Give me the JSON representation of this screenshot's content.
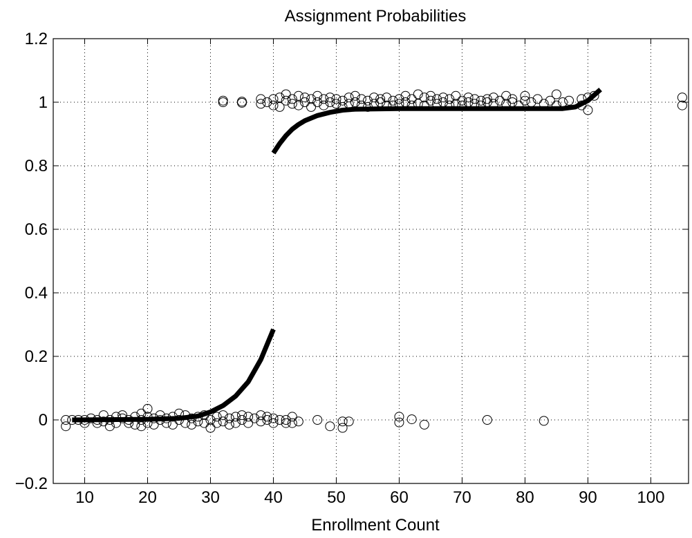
{
  "chart_data": {
    "type": "scatter",
    "title": "Assignment Probabilities",
    "xlabel": "Enrollment Count",
    "ylabel": "",
    "xlim": [
      5,
      106
    ],
    "ylim": [
      -0.2,
      1.2
    ],
    "x_ticks": [
      10,
      20,
      30,
      40,
      50,
      60,
      70,
      80,
      90,
      100
    ],
    "y_ticks": [
      -0.2,
      0,
      0.2,
      0.4,
      0.6,
      0.8,
      1,
      1.2
    ],
    "x_tick_labels": [
      "10",
      "20",
      "30",
      "40",
      "50",
      "60",
      "70",
      "80",
      "90",
      "100"
    ],
    "y_tick_labels": [
      "−0.2",
      "0",
      "0.2",
      "0.4",
      "0.6",
      "0.8",
      "1",
      "1.2"
    ],
    "grid": true,
    "series": [
      {
        "marker": "open-circle",
        "color": "#000000",
        "points": [
          [
            7,
            0.0
          ],
          [
            7,
            -0.02
          ],
          [
            8,
            0.0
          ],
          [
            9,
            0.0
          ],
          [
            10,
            -0.01
          ],
          [
            10,
            0.0
          ],
          [
            11,
            0.005
          ],
          [
            12,
            -0.01
          ],
          [
            12,
            0.0
          ],
          [
            13,
            0.015
          ],
          [
            13,
            -0.005
          ],
          [
            14,
            0.0
          ],
          [
            14,
            -0.02
          ],
          [
            15,
            0.01
          ],
          [
            15,
            -0.01
          ],
          [
            16,
            0.005
          ],
          [
            16,
            0.015
          ],
          [
            17,
            -0.01
          ],
          [
            17,
            0.0
          ],
          [
            18,
            0.01
          ],
          [
            18,
            -0.015
          ],
          [
            19,
            0.02
          ],
          [
            19,
            0.0
          ],
          [
            19,
            -0.02
          ],
          [
            20,
            0.035
          ],
          [
            20,
            0.01
          ],
          [
            20,
            -0.01
          ],
          [
            21,
            0.005
          ],
          [
            21,
            -0.015
          ],
          [
            22,
            0.0
          ],
          [
            22,
            0.015
          ],
          [
            23,
            -0.01
          ],
          [
            23,
            0.005
          ],
          [
            24,
            -0.015
          ],
          [
            24,
            0.01
          ],
          [
            25,
            0.0
          ],
          [
            25,
            0.02
          ],
          [
            26,
            -0.01
          ],
          [
            26,
            0.015
          ],
          [
            27,
            0.005
          ],
          [
            27,
            -0.015
          ],
          [
            28,
            0.01
          ],
          [
            28,
            -0.005
          ],
          [
            29,
            0.015
          ],
          [
            29,
            -0.01
          ],
          [
            30,
            0.0
          ],
          [
            30,
            -0.025
          ],
          [
            31,
            0.01
          ],
          [
            31,
            -0.01
          ],
          [
            32,
            0.015
          ],
          [
            32,
            -0.005
          ],
          [
            33,
            0.005
          ],
          [
            33,
            -0.015
          ],
          [
            34,
            0.01
          ],
          [
            34,
            -0.01
          ],
          [
            35,
            0.015
          ],
          [
            35,
            0.0
          ],
          [
            36,
            -0.01
          ],
          [
            36,
            0.01
          ],
          [
            37,
            0.005
          ],
          [
            38,
            0.015
          ],
          [
            38,
            -0.005
          ],
          [
            39,
            0.0
          ],
          [
            39,
            0.01
          ],
          [
            40,
            -0.01
          ],
          [
            40,
            0.005
          ],
          [
            41,
            0.0
          ],
          [
            42,
            0.0
          ],
          [
            42,
            -0.01
          ],
          [
            43,
            0.01
          ],
          [
            43,
            -0.01
          ],
          [
            44,
            -0.005
          ],
          [
            47,
            0.0
          ],
          [
            49,
            -0.02
          ],
          [
            51,
            -0.025
          ],
          [
            51,
            -0.005
          ],
          [
            52,
            -0.005
          ],
          [
            60,
            0.01
          ],
          [
            60,
            -0.008
          ],
          [
            62,
            0.002
          ],
          [
            64,
            -0.015
          ],
          [
            74,
            0.0
          ],
          [
            83,
            -0.003
          ],
          [
            32,
            1.0
          ],
          [
            32,
            1.005
          ],
          [
            35,
            0.998
          ],
          [
            35,
            1.002
          ],
          [
            38,
            1.01
          ],
          [
            38,
            0.995
          ],
          [
            39,
            1.0
          ],
          [
            40,
            1.01
          ],
          [
            40,
            0.99
          ],
          [
            41,
            1.015
          ],
          [
            41,
            0.985
          ],
          [
            42,
            1.005
          ],
          [
            42,
            1.025
          ],
          [
            43,
            0.995
          ],
          [
            43,
            1.01
          ],
          [
            44,
            1.02
          ],
          [
            44,
            0.99
          ],
          [
            45,
            1.0
          ],
          [
            45,
            1.015
          ],
          [
            46,
            0.985
          ],
          [
            46,
            1.01
          ],
          [
            47,
            1.0
          ],
          [
            47,
            1.02
          ],
          [
            48,
            0.99
          ],
          [
            48,
            1.01
          ],
          [
            49,
            1.0
          ],
          [
            49,
            1.015
          ],
          [
            50,
            0.995
          ],
          [
            50,
            1.01
          ],
          [
            51,
            1.005
          ],
          [
            51,
            0.985
          ],
          [
            52,
            1.015
          ],
          [
            52,
            0.995
          ],
          [
            53,
            1.0
          ],
          [
            53,
            1.02
          ],
          [
            54,
            0.99
          ],
          [
            54,
            1.01
          ],
          [
            55,
            1.005
          ],
          [
            55,
            0.985
          ],
          [
            56,
            1.015
          ],
          [
            56,
            0.995
          ],
          [
            57,
            1.0
          ],
          [
            57,
            1.01
          ],
          [
            58,
            0.99
          ],
          [
            58,
            1.015
          ],
          [
            59,
            1.005
          ],
          [
            59,
            0.99
          ],
          [
            60,
            1.01
          ],
          [
            60,
            0.995
          ],
          [
            61,
            1.0
          ],
          [
            61,
            1.02
          ],
          [
            62,
            0.99
          ],
          [
            62,
            1.01
          ],
          [
            63,
            1.025
          ],
          [
            63,
            0.995
          ],
          [
            64,
            1.015
          ],
          [
            64,
            0.99
          ],
          [
            65,
            1.005
          ],
          [
            65,
            1.02
          ],
          [
            66,
            0.995
          ],
          [
            66,
            1.01
          ],
          [
            67,
            1.0
          ],
          [
            67,
            1.015
          ],
          [
            68,
            0.99
          ],
          [
            68,
            1.01
          ],
          [
            69,
            1.02
          ],
          [
            69,
            0.995
          ],
          [
            70,
            1.005
          ],
          [
            70,
            0.99
          ],
          [
            71,
            1.015
          ],
          [
            71,
            1.0
          ],
          [
            72,
            0.995
          ],
          [
            72,
            1.01
          ],
          [
            73,
            1.005
          ],
          [
            73,
            0.99
          ],
          [
            74,
            1.01
          ],
          [
            74,
            1.0
          ],
          [
            75,
            0.995
          ],
          [
            75,
            1.015
          ],
          [
            76,
            1.005
          ],
          [
            77,
            1.02
          ],
          [
            77,
            0.995
          ],
          [
            78,
            1.0
          ],
          [
            78,
            1.01
          ],
          [
            79,
            0.99
          ],
          [
            80,
            1.02
          ],
          [
            80,
            1.005
          ],
          [
            81,
            1.0
          ],
          [
            82,
            1.01
          ],
          [
            83,
            0.995
          ],
          [
            84,
            1.005
          ],
          [
            85,
            1.025
          ],
          [
            85,
            0.99
          ],
          [
            86,
            1.0
          ],
          [
            87,
            1.005
          ],
          [
            89,
            1.01
          ],
          [
            89,
            0.99
          ],
          [
            90,
            1.015
          ],
          [
            90,
            0.975
          ],
          [
            91,
            1.02
          ],
          [
            105,
            1.015
          ],
          [
            105,
            0.99
          ]
        ]
      },
      {
        "line": "thick",
        "color": "#000000",
        "points": [
          [
            8,
            0.0
          ],
          [
            15,
            0.001
          ],
          [
            20,
            0.002
          ],
          [
            25,
            0.005
          ],
          [
            28,
            0.012
          ],
          [
            30,
            0.025
          ],
          [
            32,
            0.045
          ],
          [
            34,
            0.075
          ],
          [
            36,
            0.12
          ],
          [
            38,
            0.19
          ],
          [
            40,
            0.285
          ]
        ]
      },
      {
        "line": "thick",
        "color": "#000000",
        "points": [
          [
            40,
            0.84
          ],
          [
            41,
            0.87
          ],
          [
            42,
            0.895
          ],
          [
            43,
            0.915
          ],
          [
            44,
            0.93
          ],
          [
            45,
            0.942
          ],
          [
            47,
            0.958
          ],
          [
            49,
            0.968
          ],
          [
            51,
            0.975
          ],
          [
            53,
            0.978
          ],
          [
            60,
            0.98
          ],
          [
            70,
            0.98
          ],
          [
            80,
            0.98
          ],
          [
            86,
            0.98
          ],
          [
            88,
            0.985
          ],
          [
            90,
            1.005
          ],
          [
            92,
            1.04
          ]
        ]
      }
    ]
  }
}
